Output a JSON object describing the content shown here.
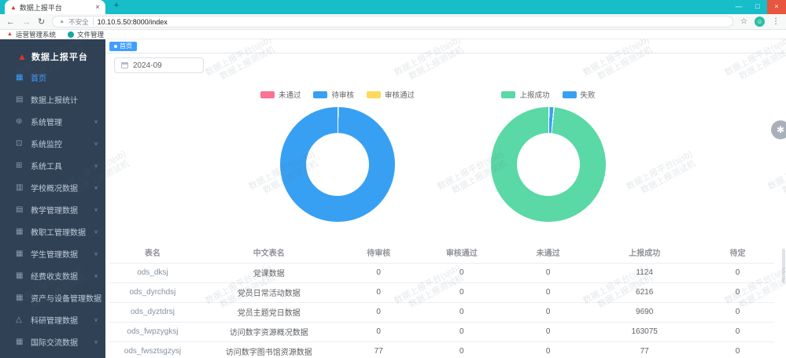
{
  "browser": {
    "tab_title": "数据上报平台",
    "not_secure": "不安全",
    "url": "10.10.5.50:8000/index",
    "bookmarks": [
      {
        "label": "运营管理系统"
      },
      {
        "label": "文件管理"
      }
    ]
  },
  "icons": {
    "back": "←",
    "forward": "→",
    "reload": "↻",
    "warning": "▲",
    "star": "☆",
    "kebab": "⋮",
    "minimize": "—",
    "maximize": "□",
    "close": "×",
    "new_tab": "+",
    "tab_close": "×",
    "logo": "▲",
    "chevron": "∨",
    "gear": "✱",
    "avatar_face": "☺"
  },
  "sidebar": {
    "logo_title": "数据上报平台",
    "items": [
      {
        "label": "首页",
        "icon": "▦",
        "icon_name": "home-grid-icon",
        "active": true,
        "has_children": false
      },
      {
        "label": "数据上报统计",
        "icon": "▤",
        "icon_name": "report-stats-icon",
        "active": false,
        "has_children": false
      },
      {
        "label": "系统管理",
        "icon": "⊛",
        "icon_name": "system-settings-icon",
        "active": false,
        "has_children": true
      },
      {
        "label": "系统监控",
        "icon": "⊡",
        "icon_name": "system-monitor-icon",
        "active": false,
        "has_children": true
      },
      {
        "label": "系统工具",
        "icon": "⊞",
        "icon_name": "system-tools-icon",
        "active": false,
        "has_children": true
      },
      {
        "label": "学校概况数据",
        "icon": "▥",
        "icon_name": "school-data-icon",
        "active": false,
        "has_children": true
      },
      {
        "label": "教学管理数据",
        "icon": "▤",
        "icon_name": "teaching-data-icon",
        "active": false,
        "has_children": true
      },
      {
        "label": "教职工管理数据",
        "icon": "▦",
        "icon_name": "staff-data-icon",
        "active": false,
        "has_children": true
      },
      {
        "label": "学生管理数据",
        "icon": "▦",
        "icon_name": "student-data-icon",
        "active": false,
        "has_children": true
      },
      {
        "label": "经费收支数据",
        "icon": "▦",
        "icon_name": "finance-data-icon",
        "active": false,
        "has_children": true
      },
      {
        "label": "资产与设备管理数据",
        "icon": "▦",
        "icon_name": "assets-data-icon",
        "active": false,
        "has_children": true
      },
      {
        "label": "科研管理数据",
        "icon": "△",
        "icon_name": "research-data-icon",
        "active": false,
        "has_children": true
      },
      {
        "label": "国际交流数据",
        "icon": "▦",
        "icon_name": "international-data-icon",
        "active": false,
        "has_children": true
      }
    ]
  },
  "tags_view": {
    "active_tag": "首页"
  },
  "filters": {
    "month_value": "2024-09"
  },
  "chart_data": [
    {
      "type": "pie",
      "variant": "donut",
      "legend_position": "top",
      "legend": [
        "未通过",
        "待审核",
        "审核通过"
      ],
      "series": [
        {
          "name": "未通过",
          "value": 0,
          "percent": 0,
          "color": "#fb7293"
        },
        {
          "name": "待审核",
          "value": 77,
          "percent": 100,
          "color": "#38a0f2"
        },
        {
          "name": "审核通过",
          "value": 0,
          "percent": 0,
          "color": "#ffd85c"
        }
      ]
    },
    {
      "type": "pie",
      "variant": "donut",
      "legend_position": "top",
      "legend": [
        "上报成功",
        "失败"
      ],
      "series": [
        {
          "name": "失败",
          "percent": 1.4,
          "color": "#38a0f2"
        },
        {
          "name": "上报成功",
          "percent": 98.6,
          "color": "#5ad8a6"
        }
      ]
    }
  ],
  "table": {
    "headers": [
      "表名",
      "中文表名",
      "待审核",
      "审核通过",
      "未通过",
      "上报成功",
      "待定"
    ],
    "rows": [
      [
        "ods_dksj",
        "党课数据",
        "0",
        "0",
        "0",
        "1124",
        "0"
      ],
      [
        "ods_dyrchdsj",
        "党员日常活动数据",
        "0",
        "0",
        "0",
        "6216",
        "0"
      ],
      [
        "ods_dyztdrsj",
        "党员主题党日数据",
        "0",
        "0",
        "0",
        "9690",
        "0"
      ],
      [
        "ods_fwpzygksj",
        "访问数字资源概况数据",
        "0",
        "0",
        "0",
        "163075",
        "0"
      ],
      [
        "ods_fwsztsgzysj",
        "访问数字图书馆资源数据",
        "77",
        "0",
        "0",
        "77",
        "0"
      ]
    ]
  },
  "watermark": {
    "line1": "数据上报平台(sjsb)",
    "line2": "数据上报测试机"
  },
  "colors": {
    "accent_blue": "#409eff",
    "titlebar_teal": "#17bdc8",
    "sidebar_bg": "#304156",
    "legend_pink": "#fb7293",
    "legend_blue": "#38a0f2",
    "legend_yellow": "#ffd85c",
    "legend_green": "#5ad8a6",
    "close_button": "#e8563f"
  }
}
